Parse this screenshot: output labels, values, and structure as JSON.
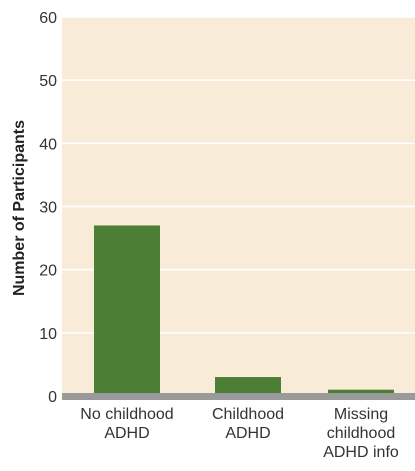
{
  "colors": {
    "plot_background": "#f8ecd9",
    "bar": "#4d7e36",
    "baseline": "#9a9a9a",
    "gridline": "#ffffff"
  },
  "chart_data": {
    "type": "bar",
    "ylabel": "Number of Participants",
    "xlabel": "",
    "title": "",
    "ylim": [
      0,
      60
    ],
    "yticks": [
      0,
      10,
      20,
      30,
      40,
      50,
      60
    ],
    "grid": true,
    "categories": [
      [
        "No childhood",
        "ADHD"
      ],
      [
        "Childhood",
        "ADHD"
      ],
      [
        "Missing",
        "childhood",
        "ADHD info"
      ]
    ],
    "values": [
      27,
      3,
      1
    ]
  }
}
